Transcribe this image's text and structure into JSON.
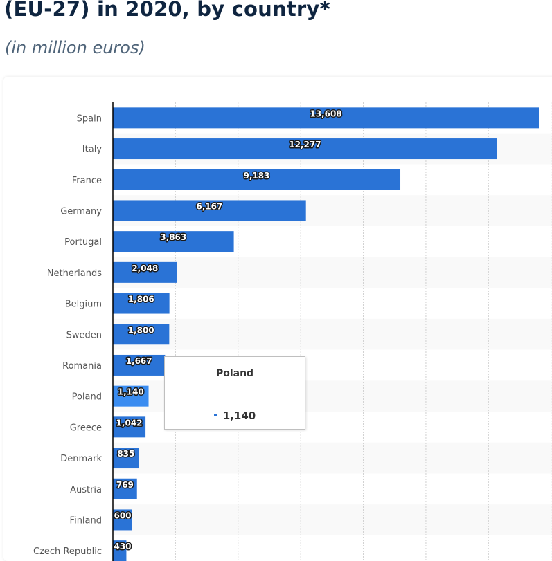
{
  "header": {
    "title": "(EU-27) in 2020, by country*",
    "subtitle": "(in million euros)"
  },
  "tooltip": {
    "title": "Poland",
    "value": "1,140"
  },
  "colors": {
    "bar": "#2a73d6",
    "bar_highlight": "#3a8cf0",
    "axis": "#000000",
    "grid": "#d0d0d0",
    "band": "#f9f9f9"
  },
  "chart_data": {
    "type": "bar",
    "orientation": "horizontal",
    "title": "(EU-27) in 2020, by country*",
    "subtitle": "(in million euros)",
    "xlabel": "",
    "ylabel": "",
    "xlim": [
      0,
      14000
    ],
    "grid": true,
    "grid_step": 2000,
    "highlighted": "Poland",
    "categories": [
      "Spain",
      "Italy",
      "France",
      "Germany",
      "Portugal",
      "Netherlands",
      "Belgium",
      "Sweden",
      "Romania",
      "Poland",
      "Greece",
      "Denmark",
      "Austria",
      "Finland",
      "Czech Republic"
    ],
    "values": [
      13608,
      12277,
      9183,
      6167,
      3863,
      2048,
      1806,
      1800,
      1667,
      1140,
      1042,
      835,
      769,
      600,
      430
    ],
    "value_labels": [
      "13,608",
      "12,277",
      "9,183",
      "6,167",
      "3,863",
      "2,048",
      "1,806",
      "1,800",
      "1,667",
      "1,140",
      "1,042",
      "835",
      "769",
      "600",
      "430"
    ]
  }
}
